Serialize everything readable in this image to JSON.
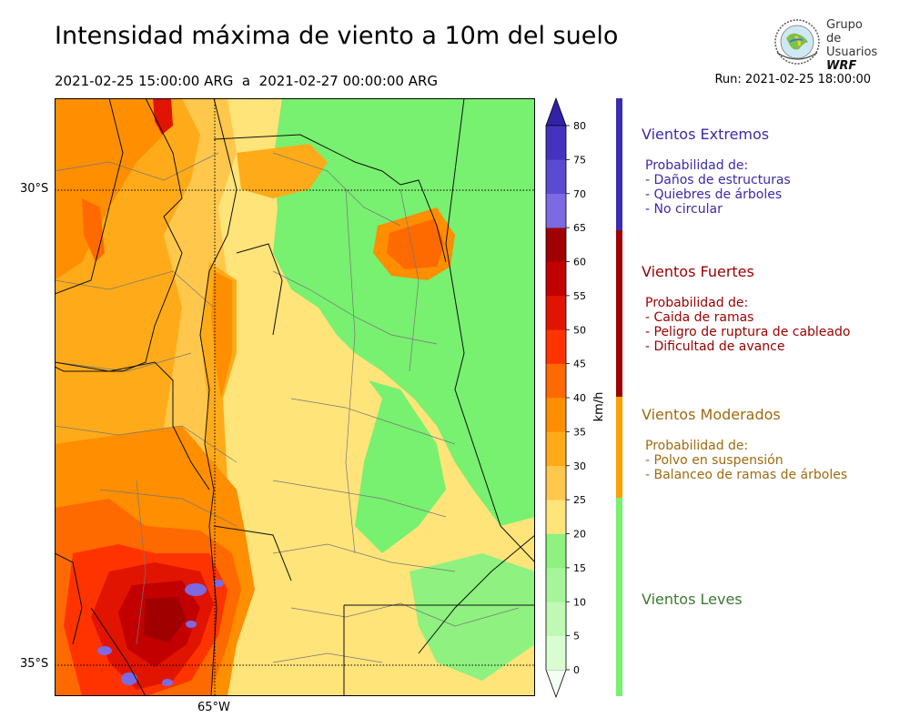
{
  "title": "Intensidad máxima de viento a 10m del suelo",
  "subtitle": "2021-02-25 15:00:00 ARG  a  2021-02-27 00:00:00 ARG",
  "run": "Run: 2021-02-25 18:00:00",
  "logo": {
    "line1": "Grupo de",
    "line2": "Usuarios",
    "line3": "WRF"
  },
  "map": {
    "lat_labels": [
      "30°S",
      "35°S"
    ],
    "lon_labels": [
      "65°W"
    ],
    "graticule": {
      "lats": [
        -30,
        -35
      ],
      "lons": [
        -65
      ]
    },
    "extent": {
      "lon_min": -66.6,
      "lon_max": -61.8,
      "lat_min": -35.3,
      "lat_max": -28.9
    }
  },
  "colorbar": {
    "unit": "km/h",
    "ticks": [
      "0",
      "5",
      "10",
      "15",
      "20",
      "25",
      "30",
      "35",
      "40",
      "45",
      "50",
      "55",
      "60",
      "65",
      "70",
      "75",
      "80"
    ],
    "colors": [
      "#f3fff3",
      "#d9fcd2",
      "#bff9b3",
      "#a6f59a",
      "#8ef180",
      "#ffe47a",
      "#ffc84c",
      "#ffab19",
      "#ff8e00",
      "#ff6a00",
      "#ff3300",
      "#e01400",
      "#c20000",
      "#a00000",
      "#7b6ae2",
      "#5a4bd2",
      "#4533c0",
      "#3222a8"
    ]
  },
  "legend": [
    {
      "title": "Vientos Extremos",
      "color": "#3a2db0",
      "text_color": "#3b2aa8",
      "body": [
        "Probabilidad de:",
        "- Daños de estructuras",
        "- Quiebres de árboles",
        "- No circular"
      ]
    },
    {
      "title": "Vientos Fuertes",
      "color": "#a00000",
      "text_color": "#990000",
      "body": [
        "Probabilidad de:",
        "- Caida de ramas",
        "- Peligro de ruptura de cableado",
        "- Dificultad de avance"
      ]
    },
    {
      "title": "Vientos Moderados",
      "color": "#ffa000",
      "text_color": "#a06a10",
      "body": [
        "Probabilidad de:",
        "- Polvo en suspensión",
        "- Balanceo de ramas de árboles"
      ]
    },
    {
      "title": "Vientos Leves",
      "color": "#78f070",
      "text_color": "#3a7a30",
      "body": []
    }
  ]
}
